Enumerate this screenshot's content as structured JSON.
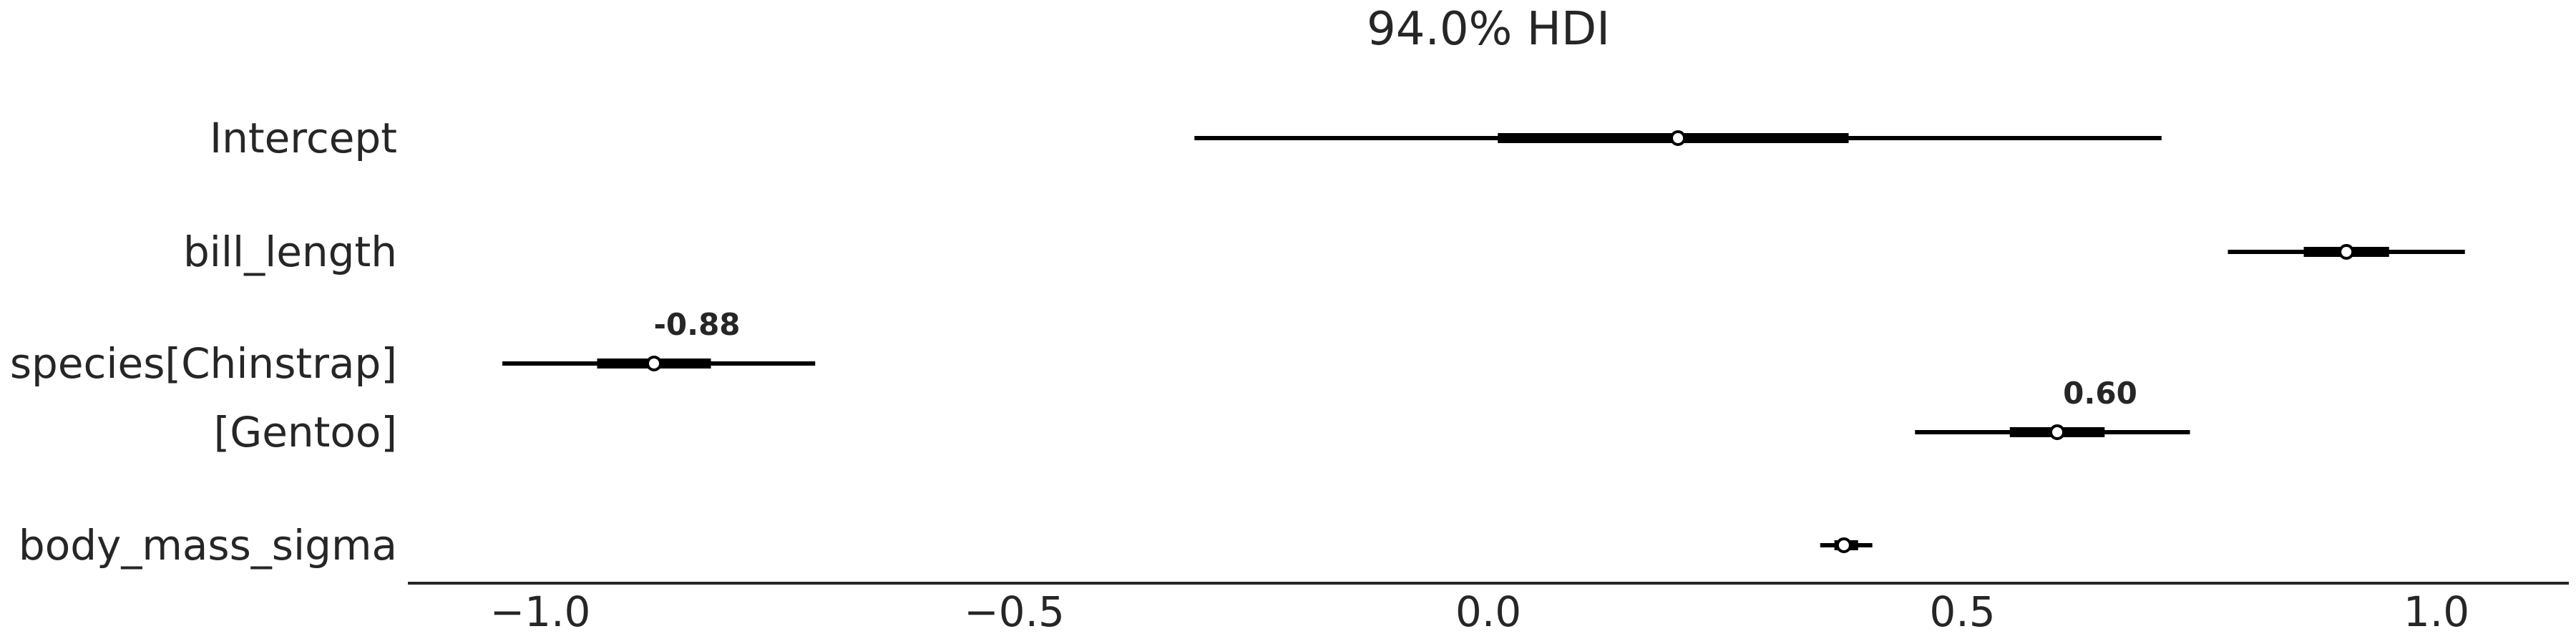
{
  "chart_data": {
    "type": "forest",
    "title": "94.0% HDI",
    "xlim": [
      -1.15,
      1.15
    ],
    "xticks": [
      -1.0,
      -0.5,
      0.0,
      0.5,
      1.0
    ],
    "xtick_labels": [
      "−1.0",
      "−0.5",
      "0.0",
      "0.5",
      "1.0"
    ],
    "rows": [
      {
        "label": "Intercept",
        "hdi": [
          -0.31,
          0.71
        ],
        "iqr": [
          0.01,
          0.38
        ],
        "point": 0.2,
        "annotation": ""
      },
      {
        "label": "bill_length",
        "hdi": [
          0.78,
          1.03
        ],
        "iqr": [
          0.86,
          0.95
        ],
        "point": 0.905,
        "annotation": ""
      },
      {
        "label": "species[Chinstrap]",
        "hdi": [
          -1.04,
          -0.71
        ],
        "iqr": [
          -0.94,
          -0.82
        ],
        "point": -0.88,
        "annotation": "-0.88"
      },
      {
        "label": "[Gentoo]",
        "hdi": [
          0.45,
          0.74
        ],
        "iqr": [
          0.55,
          0.65
        ],
        "point": 0.6,
        "annotation": "0.60"
      },
      {
        "label": "body_mass_sigma",
        "hdi": [
          0.35,
          0.405
        ],
        "iqr": [
          0.365,
          0.39
        ],
        "point": 0.375,
        "annotation": ""
      }
    ],
    "grid": false,
    "legend": "none"
  }
}
